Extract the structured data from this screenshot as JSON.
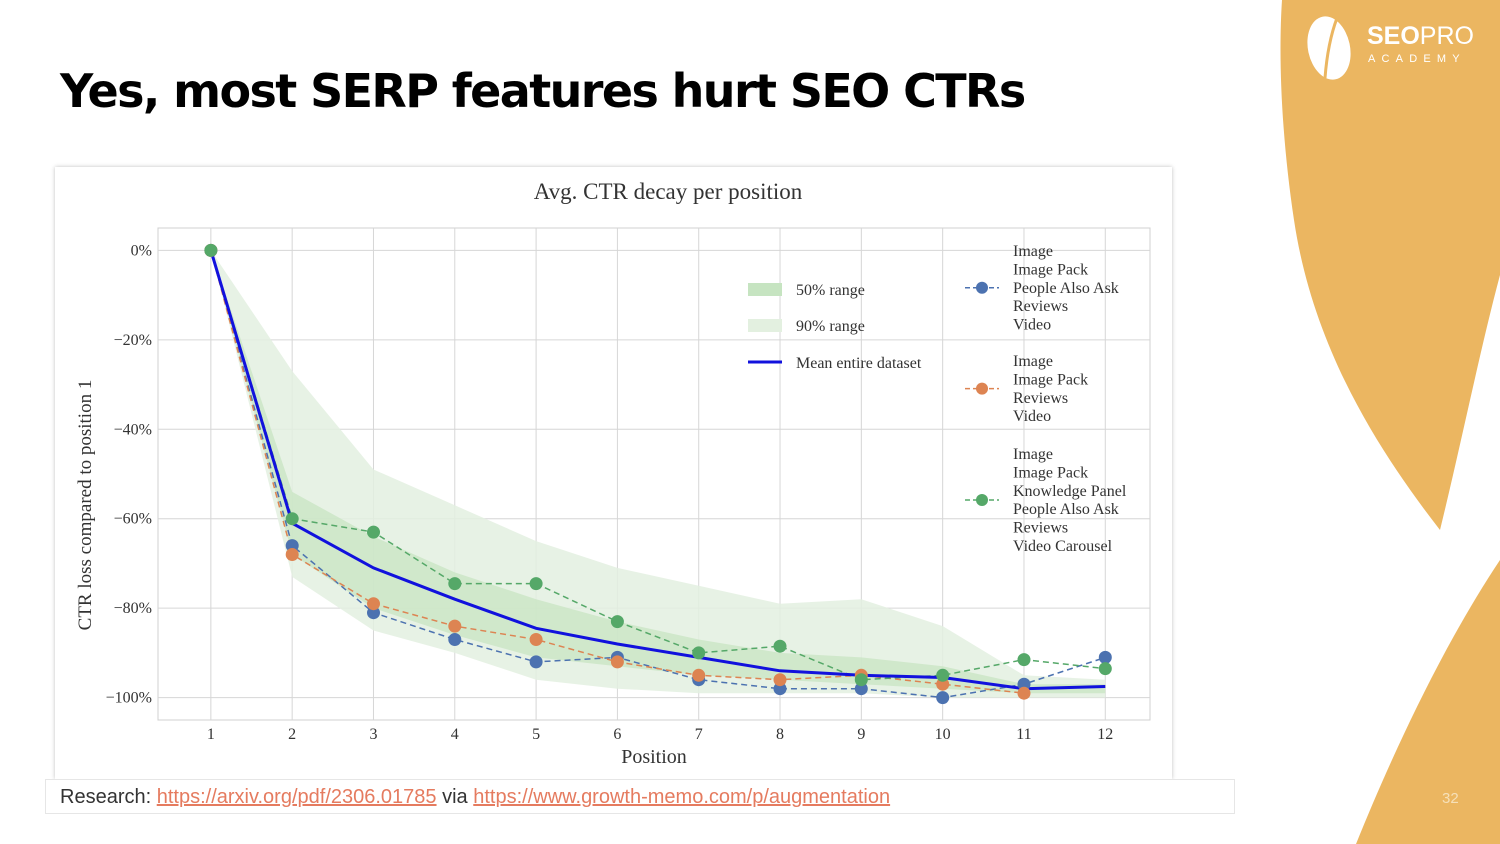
{
  "slide": {
    "title": "Yes, most SERP features hurt SEO CTRs",
    "page_number": "32",
    "accent_color": "#ebb661"
  },
  "logo": {
    "brand_bold": "SEO",
    "brand_light": "PRO",
    "sub": "ACADEMY"
  },
  "caption": {
    "prefix": "Research:",
    "link1": "https://arxiv.org/pdf/2306.01785",
    "middle": "via",
    "link2": "https://www.growth-memo.com/p/augmentation",
    "link_color": "#e57b5f"
  },
  "chart_data": {
    "type": "line",
    "title": "Avg. CTR decay per position",
    "xlabel": "Position",
    "ylabel": "CTR loss compared to position 1",
    "x": [
      1,
      2,
      3,
      4,
      5,
      6,
      7,
      8,
      9,
      10,
      11,
      12
    ],
    "xlim": [
      0.35,
      12.55
    ],
    "ylim": [
      -105,
      5
    ],
    "yticks": [
      0,
      -20,
      -40,
      -60,
      -80,
      -100
    ],
    "ytick_labels": [
      "0%",
      "−20%",
      "−40%",
      "−60%",
      "−80%",
      "−100%"
    ],
    "grid": true,
    "legend_placement": "upper-right",
    "ranges": [
      {
        "name": "90% range",
        "color": "#e3f0e0",
        "lower": [
          0,
          -73,
          -85,
          -90,
          -96,
          -98,
          -99,
          -99,
          -99,
          -100,
          -100,
          -100
        ],
        "upper": [
          0,
          -27,
          -49,
          -57,
          -65,
          -71,
          -75,
          -79,
          -78,
          -84,
          -95,
          -96
        ]
      },
      {
        "name": "50% range",
        "color": "#c6e4c1",
        "lower": [
          0,
          -68,
          -80,
          -86,
          -91,
          -93,
          -95,
          -96,
          -97,
          -98,
          -99,
          -99
        ],
        "upper": [
          0,
          -54,
          -64,
          -72,
          -78,
          -83,
          -87,
          -90,
          -91,
          -93,
          -97,
          -97
        ]
      }
    ],
    "mean": {
      "name": "Mean entire dataset",
      "color": "#1111dd",
      "values": [
        0,
        -61,
        -71,
        -78,
        -84.5,
        -88,
        -91,
        -94,
        -95,
        -95.5,
        -98,
        -97.5
      ]
    },
    "series": [
      {
        "color": "#4c72b0",
        "legend_lines": [
          "Image",
          "Image Pack",
          "People Also Ask",
          "Reviews",
          "Video"
        ],
        "values": [
          0,
          -66,
          -81,
          -87,
          -92,
          -91,
          -96,
          -98,
          -98,
          -100,
          -97,
          -91
        ]
      },
      {
        "color": "#dd8452",
        "legend_lines": [
          "Image",
          "Image Pack",
          "Reviews",
          "Video"
        ],
        "values": [
          0,
          -68,
          -79,
          -84,
          -87,
          -92,
          -95,
          -96,
          -95,
          -97,
          -99,
          null
        ]
      },
      {
        "color": "#55a868",
        "legend_lines": [
          "Image",
          "Image Pack",
          "Knowledge Panel",
          "People Also Ask",
          "Reviews",
          "Video Carousel"
        ],
        "values": [
          0,
          -60,
          -63,
          -74.5,
          -74.5,
          -83,
          -90,
          -88.5,
          -96,
          -95,
          -91.5,
          -93.5
        ]
      }
    ]
  }
}
